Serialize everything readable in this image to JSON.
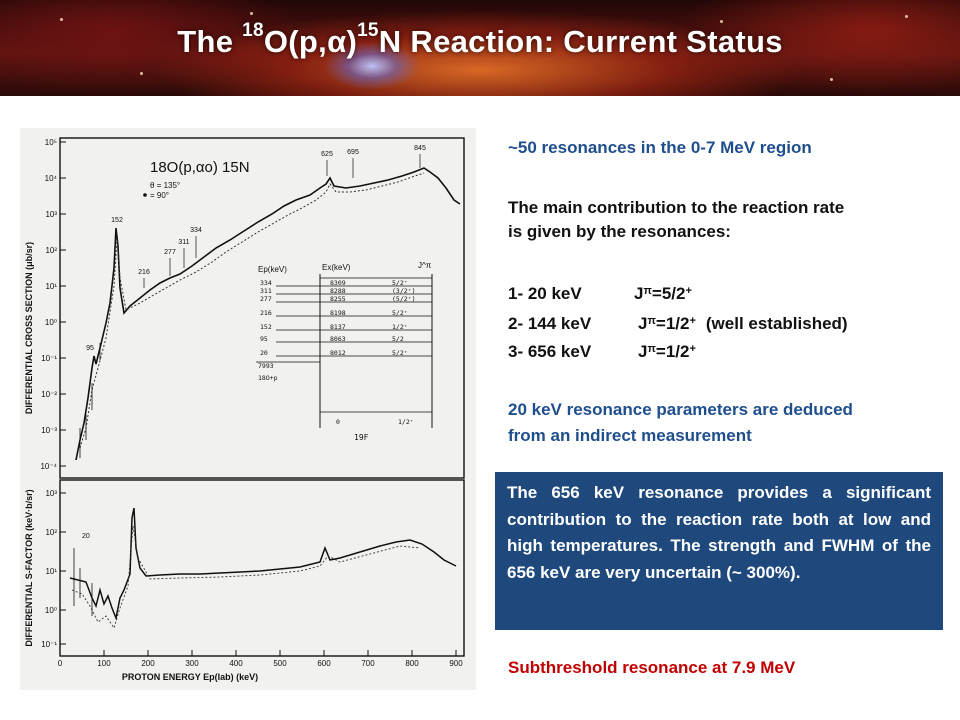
{
  "header": {
    "title_prefix": "The ",
    "title_mass": "18",
    "title_reaction": "O(p,",
    "title_alpha": "α",
    "title_close": ")",
    "title_product_mass": "15",
    "title_suffix": "N Reaction: Current Status"
  },
  "right": {
    "line1": "~50 resonances in the 0-7 MeV region",
    "line2a": "The main contribution to the reaction rate",
    "line2b": "is given by the resonances:",
    "resonances": [
      {
        "energy": "1- 20 keV",
        "jp": "J",
        "pi": "π",
        "spin": "=5/2",
        "parity": "+",
        "note": ""
      },
      {
        "energy": "2- 144 keV",
        "jp": "J",
        "pi": "π",
        "spin": "=1/2",
        "parity": "+",
        "note": "(well established)"
      },
      {
        "energy": "3- 656 keV",
        "jp": "J",
        "pi": "π",
        "spin": "=1/2",
        "parity": "+",
        "note": ""
      }
    ],
    "line3a": "20 keV resonance parameters are deduced",
    "line3b": "from an indirect measurement",
    "box_text": "The 656 keV resonance provides a significant contribution to the reaction rate both at low and high temperatures. The strength and FWHM of the 656 keV are very uncertain (~ 300%).",
    "line4": "Subthreshold resonance at 7.9 MeV"
  },
  "figure": {
    "reaction": "18O(p,αo) 15N",
    "legend": [
      "θ = 135°",
      "= 90°"
    ],
    "ylabel_top": "DIFFERENTIAL CROSS SECTION (μb/sr)",
    "ylabel_bottom": "DIFFERENTIAL S-FACTOR (keV·b/sr)",
    "xlabel": "PROTON ENERGY Ep(lab) (keV)",
    "xticks": [
      "0",
      "100",
      "200",
      "300",
      "400",
      "500",
      "600",
      "700",
      "800",
      "900"
    ],
    "yticks_top": [
      "10⁵",
      "10⁴",
      "10³",
      "10²",
      "10¹",
      "10⁰",
      "10⁻¹",
      "10⁻²",
      "10⁻³",
      "10⁻⁴"
    ],
    "yticks_bottom": [
      "10³",
      "10²",
      "10¹",
      "10⁰",
      "10⁻¹"
    ],
    "peak_labels_top": [
      "95",
      "152",
      "216",
      "277",
      "311",
      "334",
      "625",
      "695",
      "845"
    ],
    "peak_label_bottom": "20",
    "inset": {
      "ep_header": "Ep(keV)",
      "ex_header": "Ex(keV)",
      "jpi_header": "J^π",
      "ep_values": [
        "334",
        "311",
        "277",
        "216",
        "152",
        "95",
        "20"
      ],
      "threshold": "7993",
      "threshold_label": "18O+p",
      "ex_values": [
        "8309",
        "8288",
        "8255",
        "8198",
        "8137",
        "8063",
        "8012"
      ],
      "jpi_values": [
        "5/2⁺",
        "(3/2⁺)",
        "(5/2⁺)",
        "5/2⁺",
        "1/2⁺",
        "5/2",
        "5/2⁺"
      ],
      "ground_ex": "0",
      "ground_jpi": "1/2⁺",
      "nucleus": "19F"
    }
  }
}
